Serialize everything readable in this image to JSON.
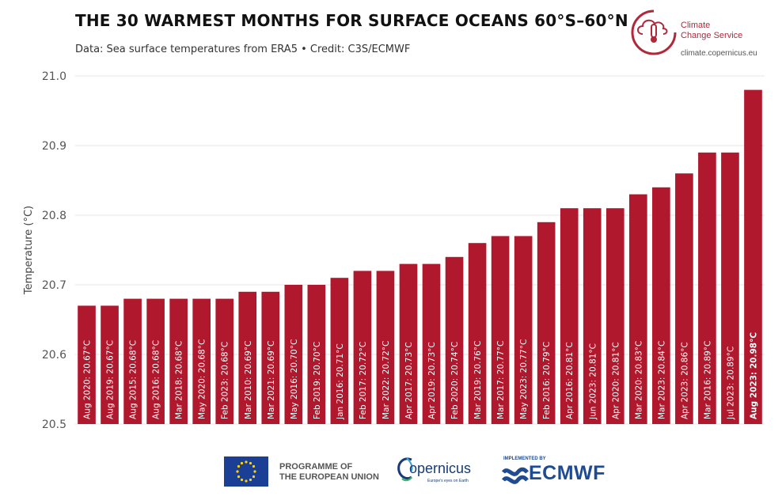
{
  "header": {
    "title": "THE 30 WARMEST MONTHS FOR SURFACE OCEANS 60°S–60°N",
    "subtitle": "Data: Sea surface temperatures from ERA5 • Credit: C3S/ECMWF"
  },
  "branding": {
    "c3s_line1": "Climate",
    "c3s_line2": "Change Service",
    "c3s_url": "climate.copernicus.eu",
    "eu_line1": "PROGRAMME OF",
    "eu_line2": "THE EUROPEAN UNION",
    "copernicus_name": "opernicus",
    "copernicus_tagline": "Europe's eyes on Earth",
    "ecmwf_implemented": "IMPLEMENTED BY",
    "ecmwf_name": "ECMWF"
  },
  "colors": {
    "bar": "#b0182d",
    "brand_red": "#b0293b",
    "eu_blue": "#1a3f95",
    "ecmwf_blue": "#1f4b92"
  },
  "chart_data": {
    "type": "bar",
    "title": "THE 30 WARMEST MONTHS FOR SURFACE OCEANS 60°S–60°N",
    "xlabel": "",
    "ylabel": "Temperature (°C)",
    "ylim": [
      20.5,
      21.0
    ],
    "yticks": [
      "20.5",
      "20.6",
      "20.7",
      "20.8",
      "20.9",
      "21.0"
    ],
    "grid": true,
    "categories": [
      "Aug 2020",
      "Aug 2019",
      "Aug 2015",
      "Aug 2016",
      "Mar 2018",
      "May 2020",
      "Feb 2023",
      "Mar 2010",
      "Mar 2021",
      "May 2016",
      "Feb 2019",
      "Jan 2016",
      "Feb 2017",
      "Mar 2022",
      "Apr 2017",
      "Apr 2019",
      "Feb 2020",
      "Mar 2019",
      "Mar 2017",
      "May 2023",
      "Feb 2016",
      "Apr 2016",
      "Jun 2023",
      "Apr 2020",
      "Mar 2020",
      "Mar 2023",
      "Apr 2023",
      "Mar 2016",
      "Jul 2023",
      "Aug 2023"
    ],
    "values": [
      20.67,
      20.67,
      20.68,
      20.68,
      20.68,
      20.68,
      20.68,
      20.69,
      20.69,
      20.7,
      20.7,
      20.71,
      20.72,
      20.72,
      20.73,
      20.73,
      20.74,
      20.76,
      20.77,
      20.77,
      20.79,
      20.81,
      20.81,
      20.81,
      20.83,
      20.84,
      20.86,
      20.89,
      20.89,
      20.98
    ],
    "labels": [
      "Aug 2020: 20.67°C",
      "Aug 2019: 20.67°C",
      "Aug 2015: 20.68°C",
      "Aug 2016: 20.68°C",
      "Mar 2018: 20.68°C",
      "May 2020: 20.68°C",
      "Feb 2023: 20.68°C",
      "Mar 2010: 20.69°C",
      "Mar 2021: 20.69°C",
      "May 2016: 20.70°C",
      "Feb 2019: 20.70°C",
      "Jan 2016: 20.71°C",
      "Feb 2017: 20.72°C",
      "Mar 2022: 20.72°C",
      "Apr 2017: 20.73°C",
      "Apr 2019: 20.73°C",
      "Feb 2020: 20.74°C",
      "Mar 2019: 20.76°C",
      "Mar 2017: 20.77°C",
      "May 2023: 20.77°C",
      "Feb 2016: 20.79°C",
      "Apr 2016: 20.81°C",
      "Jun 2023: 20.81°C",
      "Apr 2020: 20.81°C",
      "Mar 2020: 20.83°C",
      "Mar 2023: 20.84°C",
      "Apr 2023: 20.86°C",
      "Mar 2016: 20.89°C",
      "Jul 2023: 20.89°C",
      "Aug 2023: 20.98°C"
    ],
    "highlight_index": 29
  }
}
